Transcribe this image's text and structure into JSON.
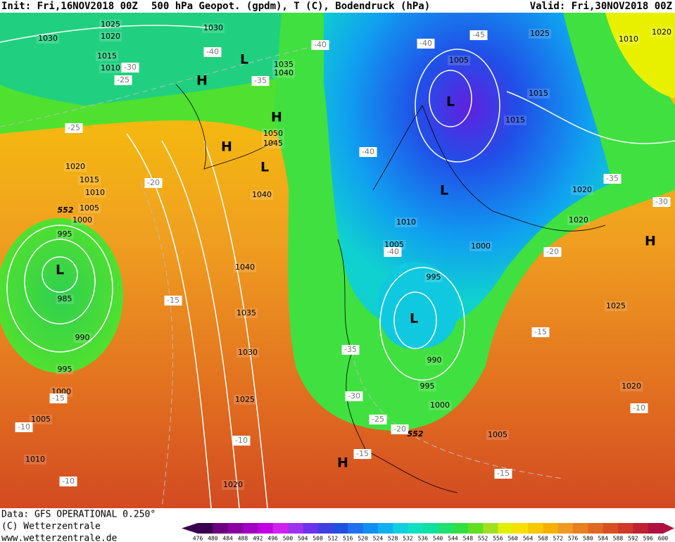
{
  "header": {
    "init": "Init: Fri,16NOV2018 00Z",
    "title": "500 hPa Geopot. (gpdm), T (C), Bodendruck (hPa)",
    "valid": "Valid: Fri,30NOV2018 00Z"
  },
  "footer": {
    "data": "Data: GFS OPERATIONAL 0.250°",
    "copyright": "(C) Wetterzentrale",
    "url": "www.wetterzentrale.de"
  },
  "scale": {
    "labels": [
      476,
      480,
      484,
      488,
      492,
      496,
      500,
      504,
      508,
      512,
      516,
      520,
      524,
      528,
      532,
      536,
      540,
      544,
      548,
      552,
      556,
      560,
      564,
      568,
      572,
      576,
      580,
      584,
      588,
      592,
      596,
      600
    ],
    "colors": [
      "#3a0050",
      "#6a0080",
      "#8a00a0",
      "#a000c0",
      "#c000e0",
      "#d020f0",
      "#a030f0",
      "#7030f0",
      "#4040e0",
      "#2050e0",
      "#2070f0",
      "#1090f0",
      "#10b0f0",
      "#10d0e0",
      "#10e0c0",
      "#10e0a0",
      "#20e070",
      "#30e040",
      "#60e020",
      "#a0e020",
      "#e0f000",
      "#f8e000",
      "#f8c800",
      "#f8b000",
      "#f09820",
      "#e88020",
      "#e06820",
      "#d85020",
      "#d03828",
      "#c02030",
      "#b01040"
    ]
  },
  "labels": {
    "pressure": [
      "1030",
      "1025",
      "1020",
      "1015",
      "1010",
      "1030",
      "1035",
      "1040",
      "1050",
      "1045",
      "1040",
      "1020",
      "1015",
      "1010",
      "1005",
      "1000",
      "995",
      "985",
      "990",
      "995",
      "1000",
      "1005",
      "1010",
      "1040",
      "1035",
      "1030",
      "1025",
      "1020",
      "1005",
      "1015",
      "1015",
      "1025",
      "1010",
      "1020",
      "1020",
      "1020",
      "1010",
      "1005",
      "1000",
      "995",
      "990",
      "995",
      "1000",
      "1005",
      "1025",
      "1020"
    ],
    "temperature": [
      "-30",
      "-25",
      "-40",
      "-40",
      "-35",
      "-40",
      "-45",
      "-25",
      "-20",
      "-40",
      "-35",
      "-30",
      "-20",
      "-40",
      "-15",
      "-15",
      "-35",
      "-30",
      "-25",
      "-20",
      "-15",
      "-15",
      "-15",
      "-10",
      "-10",
      "-10",
      "-10"
    ],
    "centers": [
      "L",
      "H",
      "H",
      "H",
      "L",
      "L",
      "L",
      "L",
      "L",
      "H",
      "H"
    ],
    "contours": [
      "552",
      "552"
    ]
  }
}
